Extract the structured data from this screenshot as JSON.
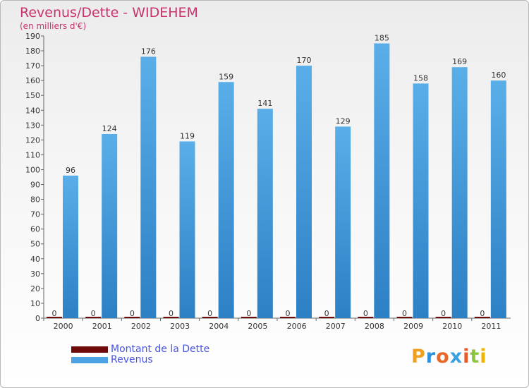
{
  "title": "Revenus/Dette - WIDEHEM",
  "subtitle": "(en milliers d'€)",
  "brand": "Proxiti",
  "colors": {
    "title": "#c8326e",
    "revenus": "#4ba3e3",
    "dette": "#6e0a0a",
    "legend_text": "#4a55e0"
  },
  "legend": [
    {
      "label": "Montant de la Dette",
      "color": "#6e0a0a"
    },
    {
      "label": "Revenus",
      "color": "#4ba3e3"
    }
  ],
  "chart_data": {
    "type": "bar",
    "title": "Revenus/Dette - WIDEHEM",
    "ylabel": "(en milliers d'€)",
    "xlabel": "",
    "categories": [
      "2000",
      "2001",
      "2002",
      "2003",
      "2004",
      "2005",
      "2006",
      "2007",
      "2008",
      "2009",
      "2010",
      "2011"
    ],
    "series": [
      {
        "name": "Montant de la Dette",
        "values": [
          0,
          0,
          0,
          0,
          0,
          0,
          0,
          0,
          0,
          0,
          0,
          0
        ]
      },
      {
        "name": "Revenus",
        "values": [
          96,
          124,
          176,
          119,
          159,
          141,
          170,
          129,
          185,
          158,
          169,
          160
        ]
      }
    ],
    "ylim": [
      0,
      190
    ],
    "ytick_step": 10,
    "grid": false,
    "legend_position": "bottom-left"
  }
}
